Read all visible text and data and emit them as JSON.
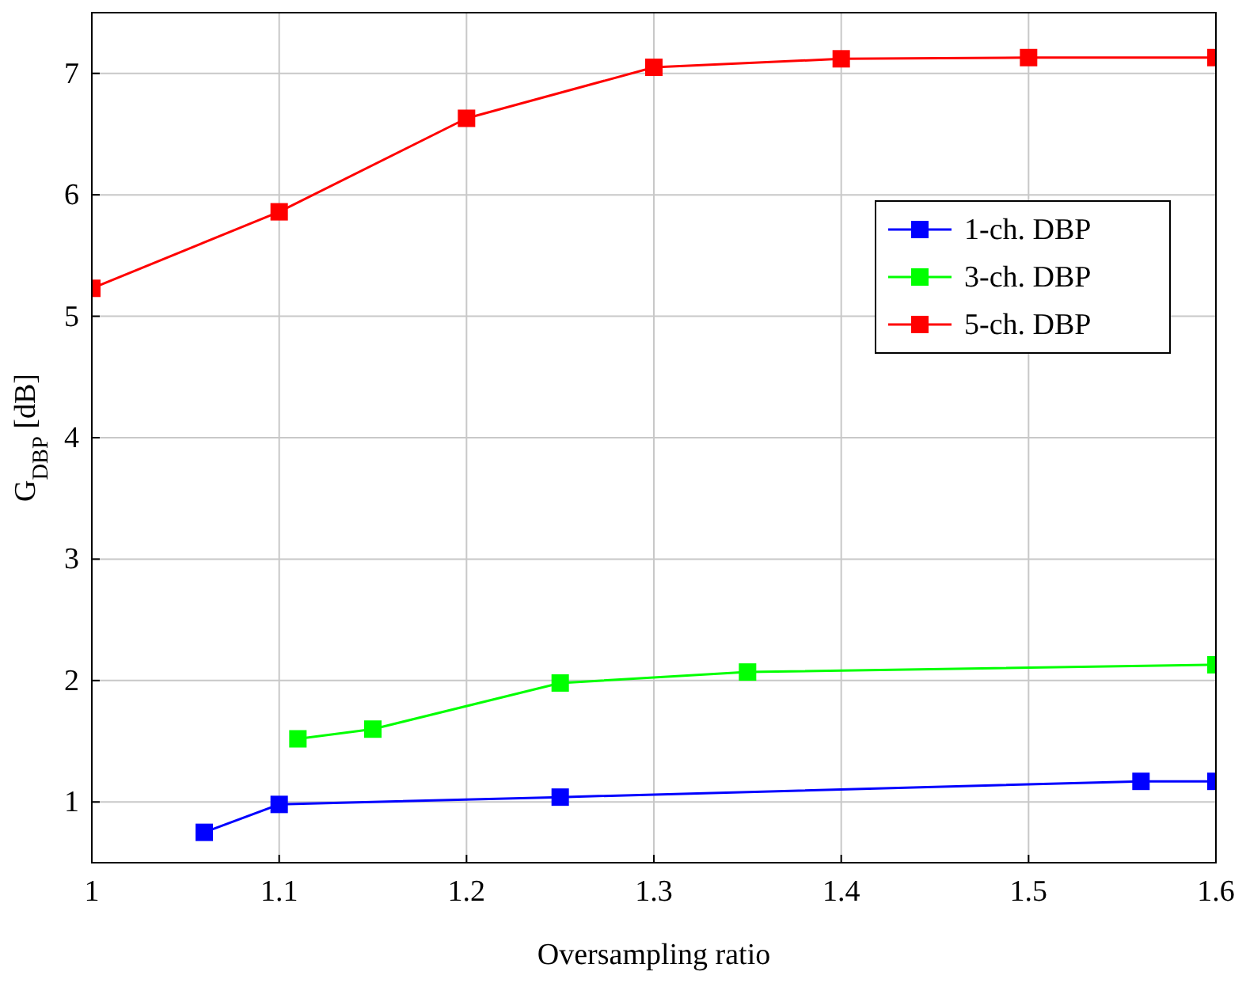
{
  "chart_data": {
    "type": "line",
    "xlabel": "Oversampling ratio",
    "ylabel": "G$_{DBP}$ [dB]",
    "xlim": [
      1,
      1.6
    ],
    "xticks": [
      1,
      1.1,
      1.2,
      1.3,
      1.4,
      1.5,
      1.6
    ],
    "ylim": [
      0.5,
      7.5
    ],
    "yticks": [
      1,
      2,
      3,
      4,
      5,
      6,
      7
    ],
    "grid": true,
    "legend": "right",
    "marker": "square",
    "line_style": "solid",
    "series": [
      {
        "name": "1-ch. DBP",
        "color": "#0000ff",
        "x": [
          1.06,
          1.1,
          1.25,
          1.56,
          1.6
        ],
        "values": [
          0.75,
          0.98,
          1.04,
          1.17,
          1.17
        ]
      },
      {
        "name": "3-ch. DBP",
        "color": "#00ff00",
        "x": [
          1.11,
          1.15,
          1.25,
          1.35,
          1.6
        ],
        "values": [
          1.52,
          1.6,
          1.98,
          2.07,
          2.13
        ]
      },
      {
        "name": "5-ch. DBP",
        "color": "#ff0000",
        "x": [
          1,
          1.1,
          1.2,
          1.3,
          1.4,
          1.5,
          1.6
        ],
        "values": [
          5.23,
          5.86,
          6.63,
          7.05,
          7.12,
          7.13,
          7.13
        ]
      }
    ]
  }
}
